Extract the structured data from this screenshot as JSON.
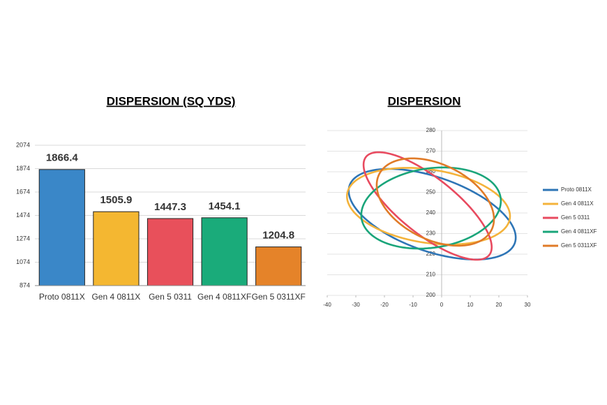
{
  "chart_data": [
    {
      "type": "bar",
      "title": "DISPERSION (SQ YDS)",
      "categories": [
        "Proto 0811X",
        "Gen 4 0811X",
        "Gen 5 0311",
        "Gen 4 0811XF",
        "Gen 5 0311XF"
      ],
      "values": [
        1866.4,
        1505.9,
        1447.3,
        1454.1,
        1204.8
      ],
      "colors": [
        "#3a87c8",
        "#f4b731",
        "#e8505b",
        "#1aab7a",
        "#e58329"
      ],
      "ylim": [
        874,
        2074
      ],
      "yticks": [
        874,
        1074,
        1274,
        1474,
        1674,
        1874,
        2074
      ],
      "grid": true
    },
    {
      "type": "ellipse",
      "title": "DISPERSION",
      "series": [
        {
          "name": "Proto 0811X",
          "color": "#2e75b6",
          "center": [
            -3.3,
            239.4
          ],
          "radius": [
            29.2,
            22
          ],
          "phase": -31
        },
        {
          "name": "Gen 4 0811X",
          "color": "#f4b33b",
          "center": [
            -4.6,
            243.3
          ],
          "radius": [
            28.5,
            18.6
          ],
          "phase": -15
        },
        {
          "name": "Gen 5 0311",
          "color": "#e84a5f",
          "center": [
            -4.9,
            243.4
          ],
          "radius": [
            22.4,
            26.1
          ],
          "phase": -50
        },
        {
          "name": "Gen 4 0811XF",
          "color": "#1aa57a",
          "center": [
            -3.7,
            242.4
          ],
          "radius": [
            24.4,
            19.7
          ],
          "phase": 10
        },
        {
          "name": "Gen 5 0311XF",
          "color": "#e07b28",
          "center": [
            -2.2,
            245.3
          ],
          "radius": [
            20.5,
            21.2
          ],
          "phase": -23
        }
      ],
      "xlim": [
        -40,
        30
      ],
      "xticks": [
        -40,
        -30,
        -20,
        -10,
        0,
        10,
        20,
        30
      ],
      "ylim": [
        200,
        280
      ],
      "yticks": [
        200,
        210,
        220,
        230,
        240,
        250,
        260,
        270,
        280
      ],
      "grid": true,
      "legend": "right"
    }
  ]
}
